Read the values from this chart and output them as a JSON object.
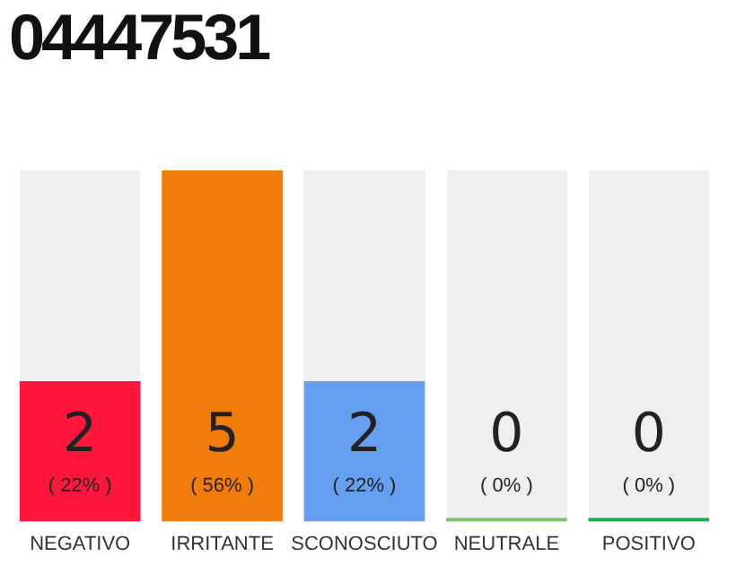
{
  "chart_data": {
    "type": "bar",
    "title": "04447531",
    "categories": [
      "NEGATIVO",
      "IRRITANTE",
      "SCONOSCIUTO",
      "NEUTRALE",
      "POSITIVO"
    ],
    "values": [
      2,
      5,
      2,
      0,
      0
    ],
    "colors": [
      "#fe163c",
      "#f07c0c",
      "#669ef0",
      "#7dc06b",
      "#1ea54a"
    ],
    "value_labels": [
      "2\n( 22% )",
      "5\n( 56% )",
      "2\n( 22% )",
      "0\n( 0% )",
      "0\n( 0% )"
    ],
    "grid": false,
    "legend": false
  }
}
